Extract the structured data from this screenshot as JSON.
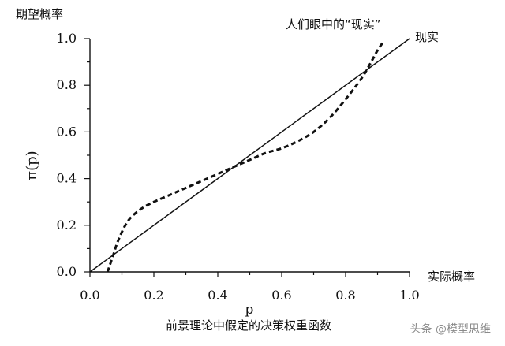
{
  "chart_data": {
    "type": "line",
    "title": "",
    "subtitle": "",
    "caption": "前景理论中假定的决策权重函数",
    "xlabel": "p",
    "ylabel": "π(p)",
    "x_axis_end_label": "实际概率",
    "y_axis_top_label": "期望概率",
    "xlim": [
      0.0,
      1.0
    ],
    "ylim": [
      0.0,
      1.0
    ],
    "x_ticks": [
      "0.0",
      "0.2",
      "0.4",
      "0.6",
      "0.8",
      "1.0"
    ],
    "y_ticks": [
      "0.0",
      "0.2",
      "0.4",
      "0.6",
      "0.8",
      "1.0"
    ],
    "grid": false,
    "series": [
      {
        "name": "现实",
        "style": "solid",
        "color": "#111111",
        "x": [
          0.0,
          1.0
        ],
        "y": [
          0.0,
          1.0
        ]
      },
      {
        "name": "人们眼中的“现实”",
        "style": "dashed",
        "color": "#111111",
        "x": [
          0.055,
          0.07,
          0.09,
          0.12,
          0.16,
          0.2,
          0.25,
          0.3,
          0.35,
          0.4,
          0.45,
          0.5,
          0.55,
          0.6,
          0.65,
          0.7,
          0.75,
          0.8,
          0.85,
          0.88,
          0.9,
          0.92
        ],
        "y": [
          0.0,
          0.06,
          0.14,
          0.22,
          0.27,
          0.3,
          0.33,
          0.36,
          0.39,
          0.42,
          0.45,
          0.48,
          0.51,
          0.53,
          0.56,
          0.6,
          0.66,
          0.74,
          0.83,
          0.9,
          0.95,
          0.99
        ]
      }
    ]
  },
  "watermark": "头条 @模型思维"
}
